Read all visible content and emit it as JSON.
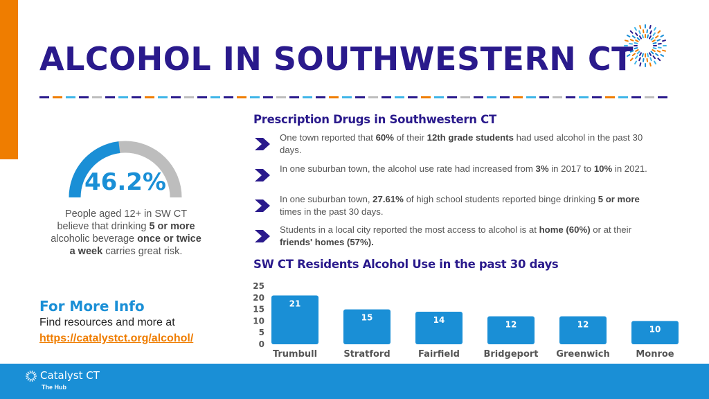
{
  "title": "ALCOHOL IN SOUTHWESTERN CT",
  "colors": {
    "navy": "#2a1a8c",
    "blue": "#1a8fd6",
    "orange": "#ef7d00",
    "gray": "#bdbdbd",
    "cyan": "#3fb5e8"
  },
  "stat": {
    "value": "46.2%",
    "percent": 46.2,
    "desc_1": "People aged 12+ in SW CT believe that drinking ",
    "desc_2": "5 or more",
    "desc_3": " alcoholic beverage ",
    "desc_4": "once or twice a week",
    "desc_5": " carries great risk."
  },
  "more_info": {
    "title": "For More Info",
    "text": "Find resources and more at",
    "link": "https://catalystct.org/alcohol/"
  },
  "section1_title": "Prescription Drugs in Southwestern CT",
  "bullets": [
    {
      "p1": "One town reported that ",
      "b1": "60%",
      "p2": " of their ",
      "b2": "12th grade students",
      "p3": " had used alcohol in the past 30 days."
    },
    {
      "p1": "In one suburban town, the alcohol use rate had increased from ",
      "b1": "3%",
      "p2": " in 2017 to ",
      "b2": "10%",
      "p3": " in 2021."
    },
    {
      "p1": "In one suburban town, ",
      "b1": "27.61%",
      "p2": " of high school students reported binge drinking ",
      "b2": "5 or more",
      "p3": " times in the past 30 days."
    },
    {
      "p1": "Students in a local city reported the most access to alcohol is at ",
      "b1": "home (60%)",
      "p2": " or at their ",
      "b2": "friends' homes (57%).",
      "p3": ""
    }
  ],
  "section2_title": "SW CT Residents Alcohol Use in the past 30 days",
  "chart_data": {
    "type": "bar",
    "title": "SW CT Residents Alcohol Use in the past 30 days",
    "categories": [
      "Trumbull",
      "Stratford",
      "Fairfield",
      "Bridgeport",
      "Greenwich",
      "Monroe"
    ],
    "values": [
      21,
      15,
      14,
      12,
      12,
      10
    ],
    "yticks": [
      "0",
      "5",
      "10",
      "15",
      "20",
      "25"
    ],
    "ylim": [
      0,
      25
    ],
    "bar_color": "#1a8fd6",
    "grid": false,
    "legend": "none"
  },
  "footer": {
    "brand": "Catalyst CT",
    "sub": "The Hub"
  }
}
